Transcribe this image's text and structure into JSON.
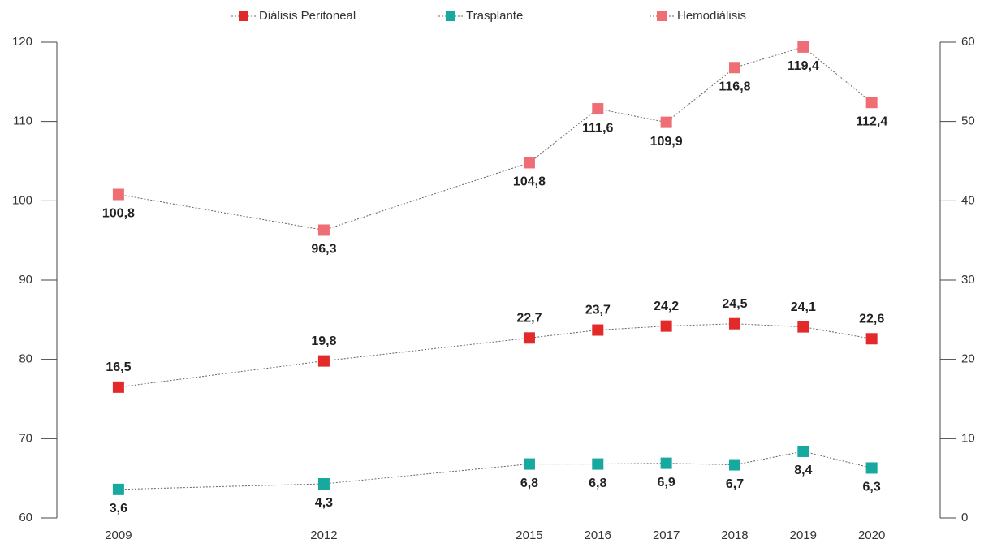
{
  "chart_data": {
    "type": "line",
    "x": [
      2009,
      2012,
      2015,
      2016,
      2017,
      2018,
      2019,
      2020
    ],
    "xlim": [
      2008.1,
      2021.0
    ],
    "xticks": [
      2009,
      2012,
      2015,
      2016,
      2017,
      2018,
      2019,
      2020
    ],
    "ylim": [
      60,
      120
    ],
    "yticks": [
      60,
      70,
      80,
      90,
      100,
      110,
      120
    ],
    "y2lim": [
      0,
      60
    ],
    "y2ticks": [
      0,
      10,
      20,
      30,
      40,
      50,
      60
    ],
    "grid": false,
    "legend": "top",
    "series": [
      {
        "name": "Diálisis Peritoneal",
        "color": "#e32a2a",
        "axis": "y2",
        "values": [
          16.5,
          19.8,
          22.7,
          23.7,
          24.2,
          24.5,
          24.1,
          22.6
        ],
        "value_labels": [
          "16,5",
          "19,8",
          "22,7",
          "23,7",
          "24,2",
          "24,5",
          "24,1",
          "22,6"
        ]
      },
      {
        "name": "Trasplante",
        "color": "#17a89f",
        "axis": "y2",
        "values": [
          3.6,
          4.3,
          6.8,
          6.8,
          6.9,
          6.7,
          8.4,
          6.3
        ],
        "value_labels": [
          "3,6",
          "4,3",
          "6,8",
          "6,8",
          "6,9",
          "6,7",
          "8,4",
          "6,3"
        ]
      },
      {
        "name": "Hemodiálisis",
        "color": "#ef6d75",
        "axis": "y",
        "values": [
          100.8,
          96.3,
          104.8,
          111.6,
          109.9,
          116.8,
          119.4,
          112.4
        ],
        "value_labels": [
          "100,8",
          "96,3",
          "104,8",
          "111,6",
          "109,9",
          "116,8",
          "119,4",
          "112,4"
        ]
      }
    ]
  }
}
